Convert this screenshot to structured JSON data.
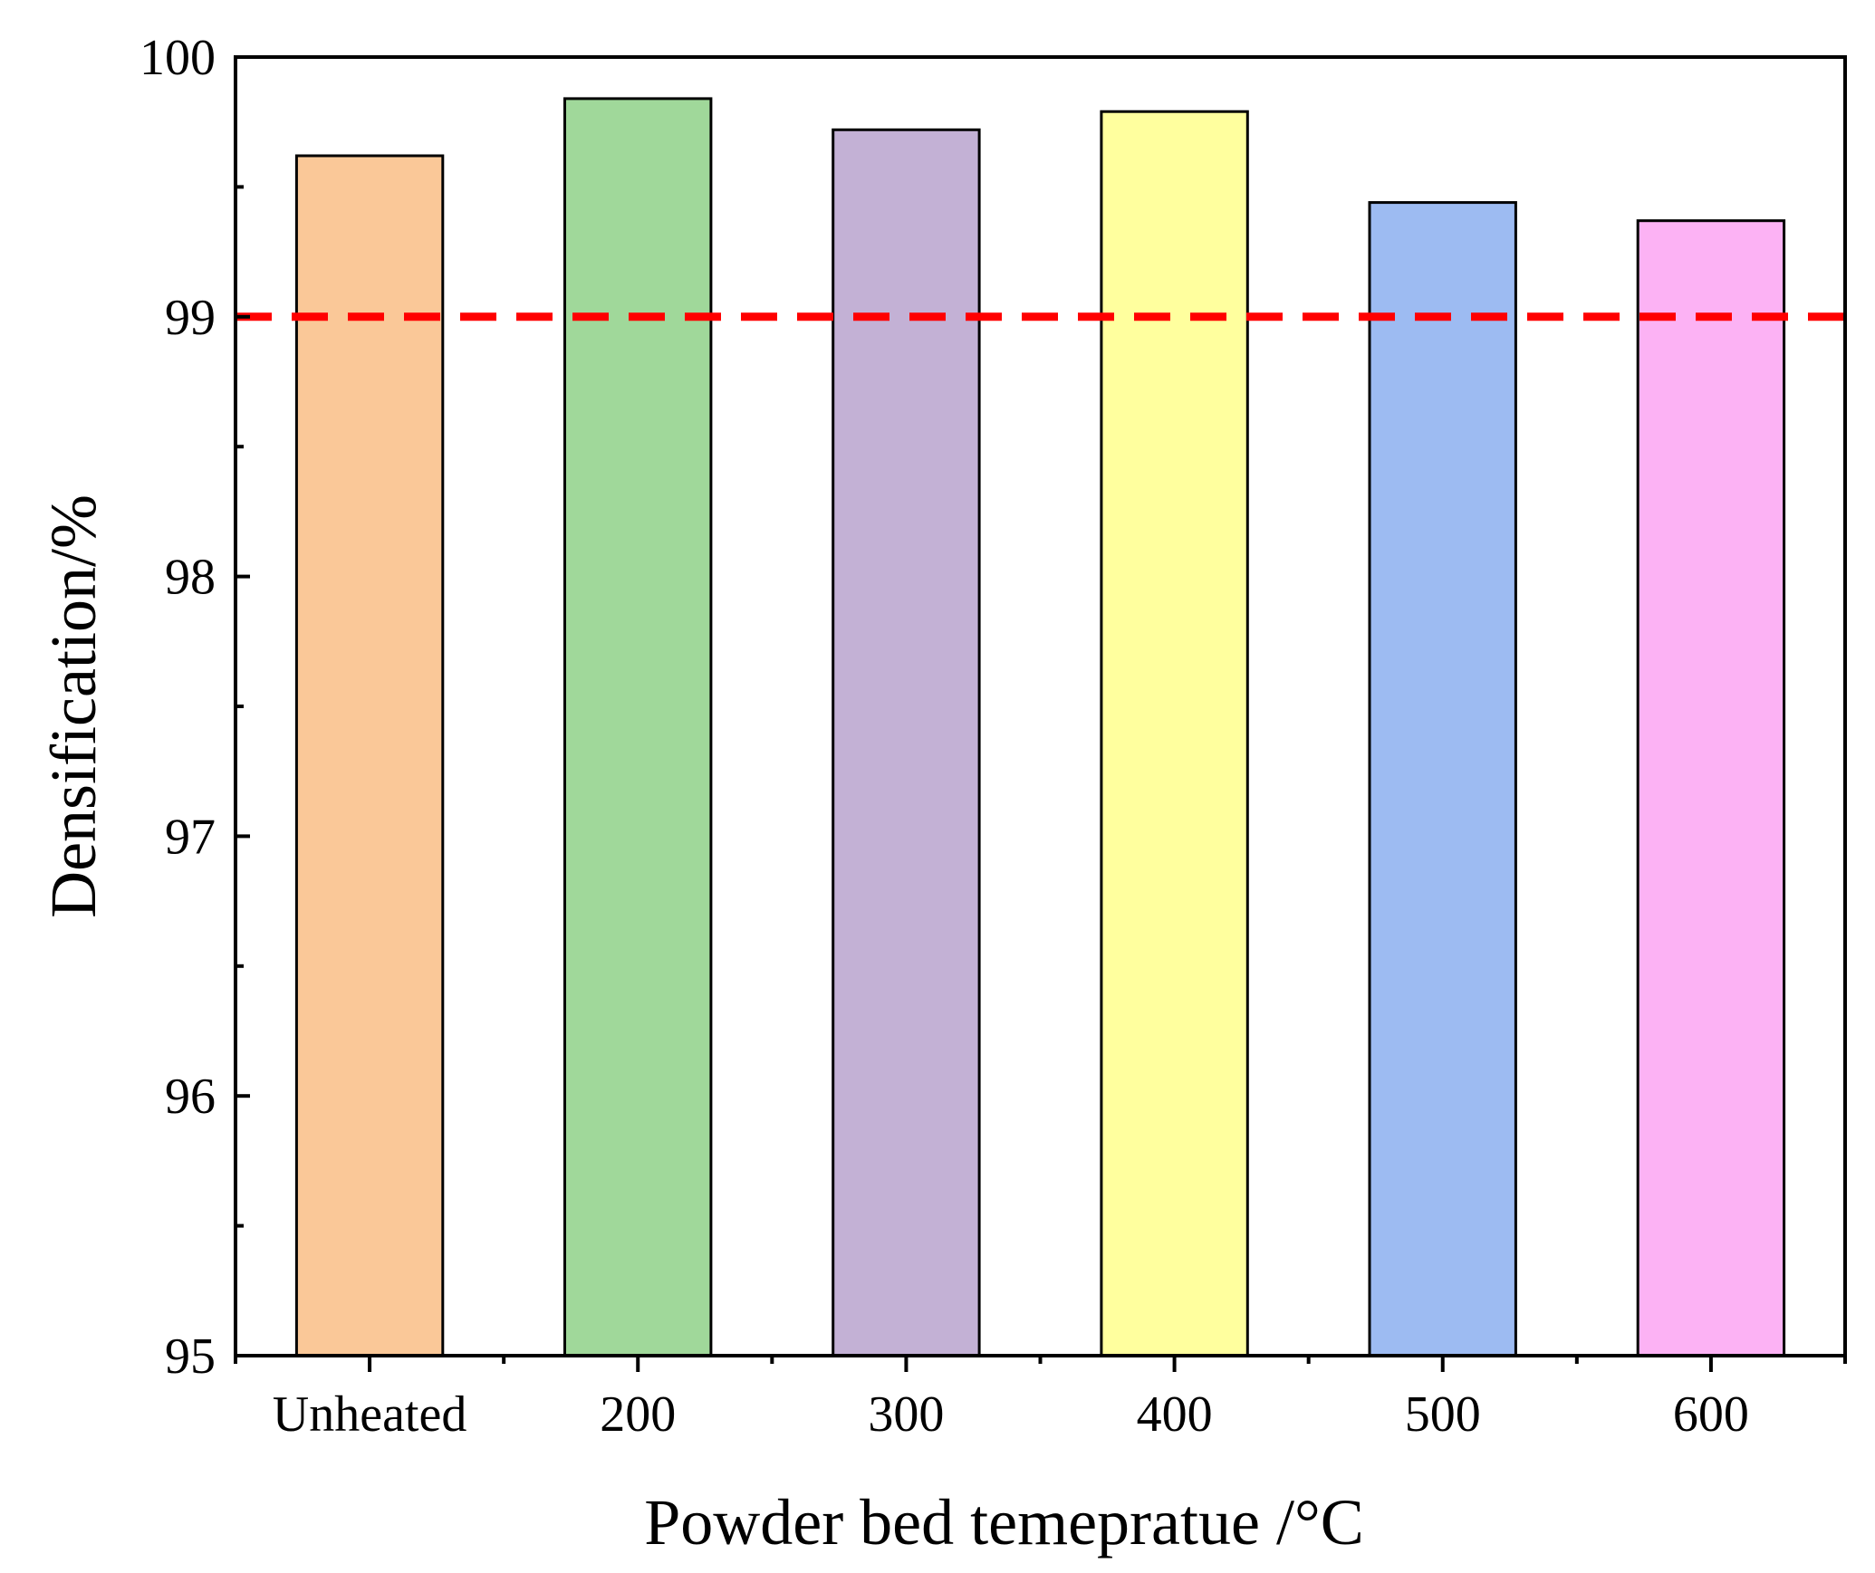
{
  "chart_data": {
    "type": "bar",
    "title": "",
    "xlabel": "Powder bed temepratue /°C",
    "ylabel": "Densification/%",
    "categories": [
      "Unheated",
      "200",
      "300",
      "400",
      "500",
      "600"
    ],
    "values": [
      99.62,
      99.84,
      99.72,
      99.79,
      99.44,
      99.37
    ],
    "colors": [
      "#FAC898",
      "#A0D89A",
      "#C3B1D5",
      "#FFFF9E",
      "#9DBBF2",
      "#FCB2F4"
    ],
    "ylim": [
      95,
      100
    ],
    "yticks": [
      "95",
      "96",
      "97",
      "98",
      "99",
      "100"
    ],
    "reference_line": {
      "value": 99,
      "color": "#FF0000",
      "style": "dashed"
    },
    "grid": false
  }
}
